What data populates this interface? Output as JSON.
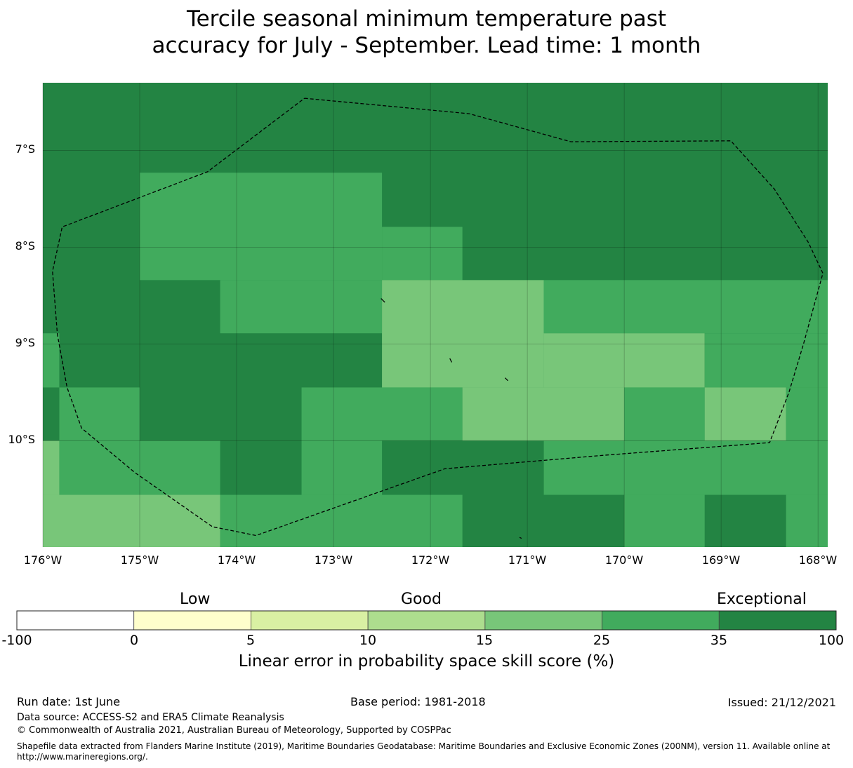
{
  "title_line1": "Tercile seasonal minimum temperature past",
  "title_line2": "accuracy for July - September. Lead time: 1 month",
  "map": {
    "lon_min": -176.0,
    "lon_max": -167.9,
    "lat_top": -6.3,
    "lat_bottom": -11.1,
    "lon_ticks": [
      "176°W",
      "175°W",
      "174°W",
      "173°W",
      "172°W",
      "171°W",
      "170°W",
      "169°W",
      "168°W"
    ],
    "lat_ticks": [
      "7°S",
      "8°S",
      "9°S",
      "10°S"
    ],
    "cells": [
      {
        "lon0": -176.0,
        "lon1": -167.9,
        "lat0": -6.3,
        "lat1": -11.1,
        "cls": 35
      },
      {
        "lon0": -175.0,
        "lon1": -172.5,
        "lat0": -7.23,
        "lat1": -8.34,
        "cls": 25
      },
      {
        "lon0": -172.5,
        "lon1": -171.67,
        "lat0": -7.79,
        "lat1": -8.34,
        "cls": 25
      },
      {
        "lon0": -174.17,
        "lon1": -172.5,
        "lat0": -8.34,
        "lat1": -8.89,
        "cls": 25
      },
      {
        "lon0": -172.5,
        "lon1": -170.83,
        "lat0": -8.34,
        "lat1": -9.45,
        "cls": 15
      },
      {
        "lon0": -170.83,
        "lon1": -167.9,
        "lat0": -8.34,
        "lat1": -8.89,
        "cls": 25
      },
      {
        "lon0": -170.83,
        "lon1": -169.17,
        "lat0": -8.89,
        "lat1": -9.45,
        "cls": 15
      },
      {
        "lon0": -169.17,
        "lon1": -167.9,
        "lat0": -8.89,
        "lat1": -9.45,
        "cls": 25
      },
      {
        "lon0": -176.0,
        "lon1": -175.83,
        "lat0": -8.89,
        "lat1": -9.45,
        "cls": 25
      },
      {
        "lon0": -175.83,
        "lon1": -175.0,
        "lat0": -9.45,
        "lat1": -10.0,
        "cls": 25
      },
      {
        "lon0": -173.33,
        "lon1": -171.67,
        "lat0": -9.45,
        "lat1": -10.0,
        "cls": 25
      },
      {
        "lon0": -171.67,
        "lon1": -170.0,
        "lat0": -9.45,
        "lat1": -10.0,
        "cls": 15
      },
      {
        "lon0": -170.0,
        "lon1": -169.17,
        "lat0": -9.45,
        "lat1": -10.0,
        "cls": 25
      },
      {
        "lon0": -169.17,
        "lon1": -168.33,
        "lat0": -9.45,
        "lat1": -10.0,
        "cls": 15
      },
      {
        "lon0": -168.33,
        "lon1": -167.9,
        "lat0": -9.45,
        "lat1": -10.0,
        "cls": 25
      },
      {
        "lon0": -176.0,
        "lon1": -175.83,
        "lat0": -10.0,
        "lat1": -10.56,
        "cls": 15
      },
      {
        "lon0": -175.83,
        "lon1": -174.17,
        "lat0": -10.0,
        "lat1": -10.56,
        "cls": 25
      },
      {
        "lon0": -173.33,
        "lon1": -172.5,
        "lat0": -10.0,
        "lat1": -10.56,
        "cls": 25
      },
      {
        "lon0": -170.83,
        "lon1": -167.9,
        "lat0": -10.0,
        "lat1": -10.56,
        "cls": 25
      },
      {
        "lon0": -176.0,
        "lon1": -174.17,
        "lat0": -10.56,
        "lat1": -11.1,
        "cls": 15
      },
      {
        "lon0": -174.17,
        "lon1": -171.67,
        "lat0": -10.56,
        "lat1": -11.1,
        "cls": 25
      },
      {
        "lon0": -170.0,
        "lon1": -169.17,
        "lat0": -10.56,
        "lat1": -11.1,
        "cls": 25
      },
      {
        "lon0": -168.33,
        "lon1": -167.9,
        "lat0": -10.56,
        "lat1": -11.1,
        "cls": 25
      }
    ],
    "eez_boundary": [
      [
        -173.3,
        -6.46
      ],
      [
        -171.6,
        -6.62
      ],
      [
        -170.55,
        -6.91
      ],
      [
        -168.9,
        -6.9
      ],
      [
        -168.45,
        -7.4
      ],
      [
        -168.1,
        -7.95
      ],
      [
        -167.95,
        -8.27
      ],
      [
        -168.15,
        -9.0
      ],
      [
        -168.3,
        -9.5
      ],
      [
        -168.5,
        -10.02
      ],
      [
        -170.2,
        -10.15
      ],
      [
        -171.85,
        -10.29
      ],
      [
        -173.8,
        -10.98
      ],
      [
        -174.25,
        -10.89
      ],
      [
        -175.05,
        -10.33
      ],
      [
        -175.6,
        -9.87
      ],
      [
        -175.75,
        -9.45
      ],
      [
        -175.85,
        -8.9
      ],
      [
        -175.9,
        -8.25
      ],
      [
        -175.8,
        -7.79
      ],
      [
        -174.3,
        -7.22
      ],
      [
        -173.3,
        -6.46
      ]
    ],
    "islands": [
      [
        [
          -172.51,
          -8.53
        ],
        [
          -172.47,
          -8.57
        ]
      ],
      [
        [
          -171.8,
          -9.15
        ],
        [
          -171.78,
          -9.19
        ]
      ],
      [
        [
          -171.23,
          -9.35
        ],
        [
          -171.2,
          -9.38
        ]
      ],
      [
        [
          -171.08,
          -11.0
        ],
        [
          -171.06,
          -11.01
        ]
      ]
    ]
  },
  "colorbar": {
    "categories": [
      "Low",
      "Good",
      "Exceptional"
    ],
    "ticks": [
      "-100",
      "0",
      "5",
      "10",
      "15",
      "25",
      "35",
      "100"
    ],
    "colors": [
      "#ffffff",
      "#ffffcc",
      "#d9f0a3",
      "#addd8e",
      "#78c679",
      "#41ab5d",
      "#238443"
    ],
    "label": "Linear error in probability space skill score (%)"
  },
  "footer": {
    "run_date": "Run date: 1st June",
    "base_period": "Base period: 1981-2018",
    "issued": "Issued: 21/12/2021",
    "data_source": "Data source: ACCESS-S2 and ERA5 Climate Reanalysis",
    "copyright": "© Commonwealth of Australia 2021, Australian Bureau of Meteorology, Supported by COSPPac",
    "shapefile_note": "Shapefile data extracted from Flanders Marine Institute (2019), Maritime Boundaries Geodatabase: Maritime Boundaries and Exclusive Economic Zones (200NM), version 11. Available online at http://www.marineregions.org/."
  }
}
